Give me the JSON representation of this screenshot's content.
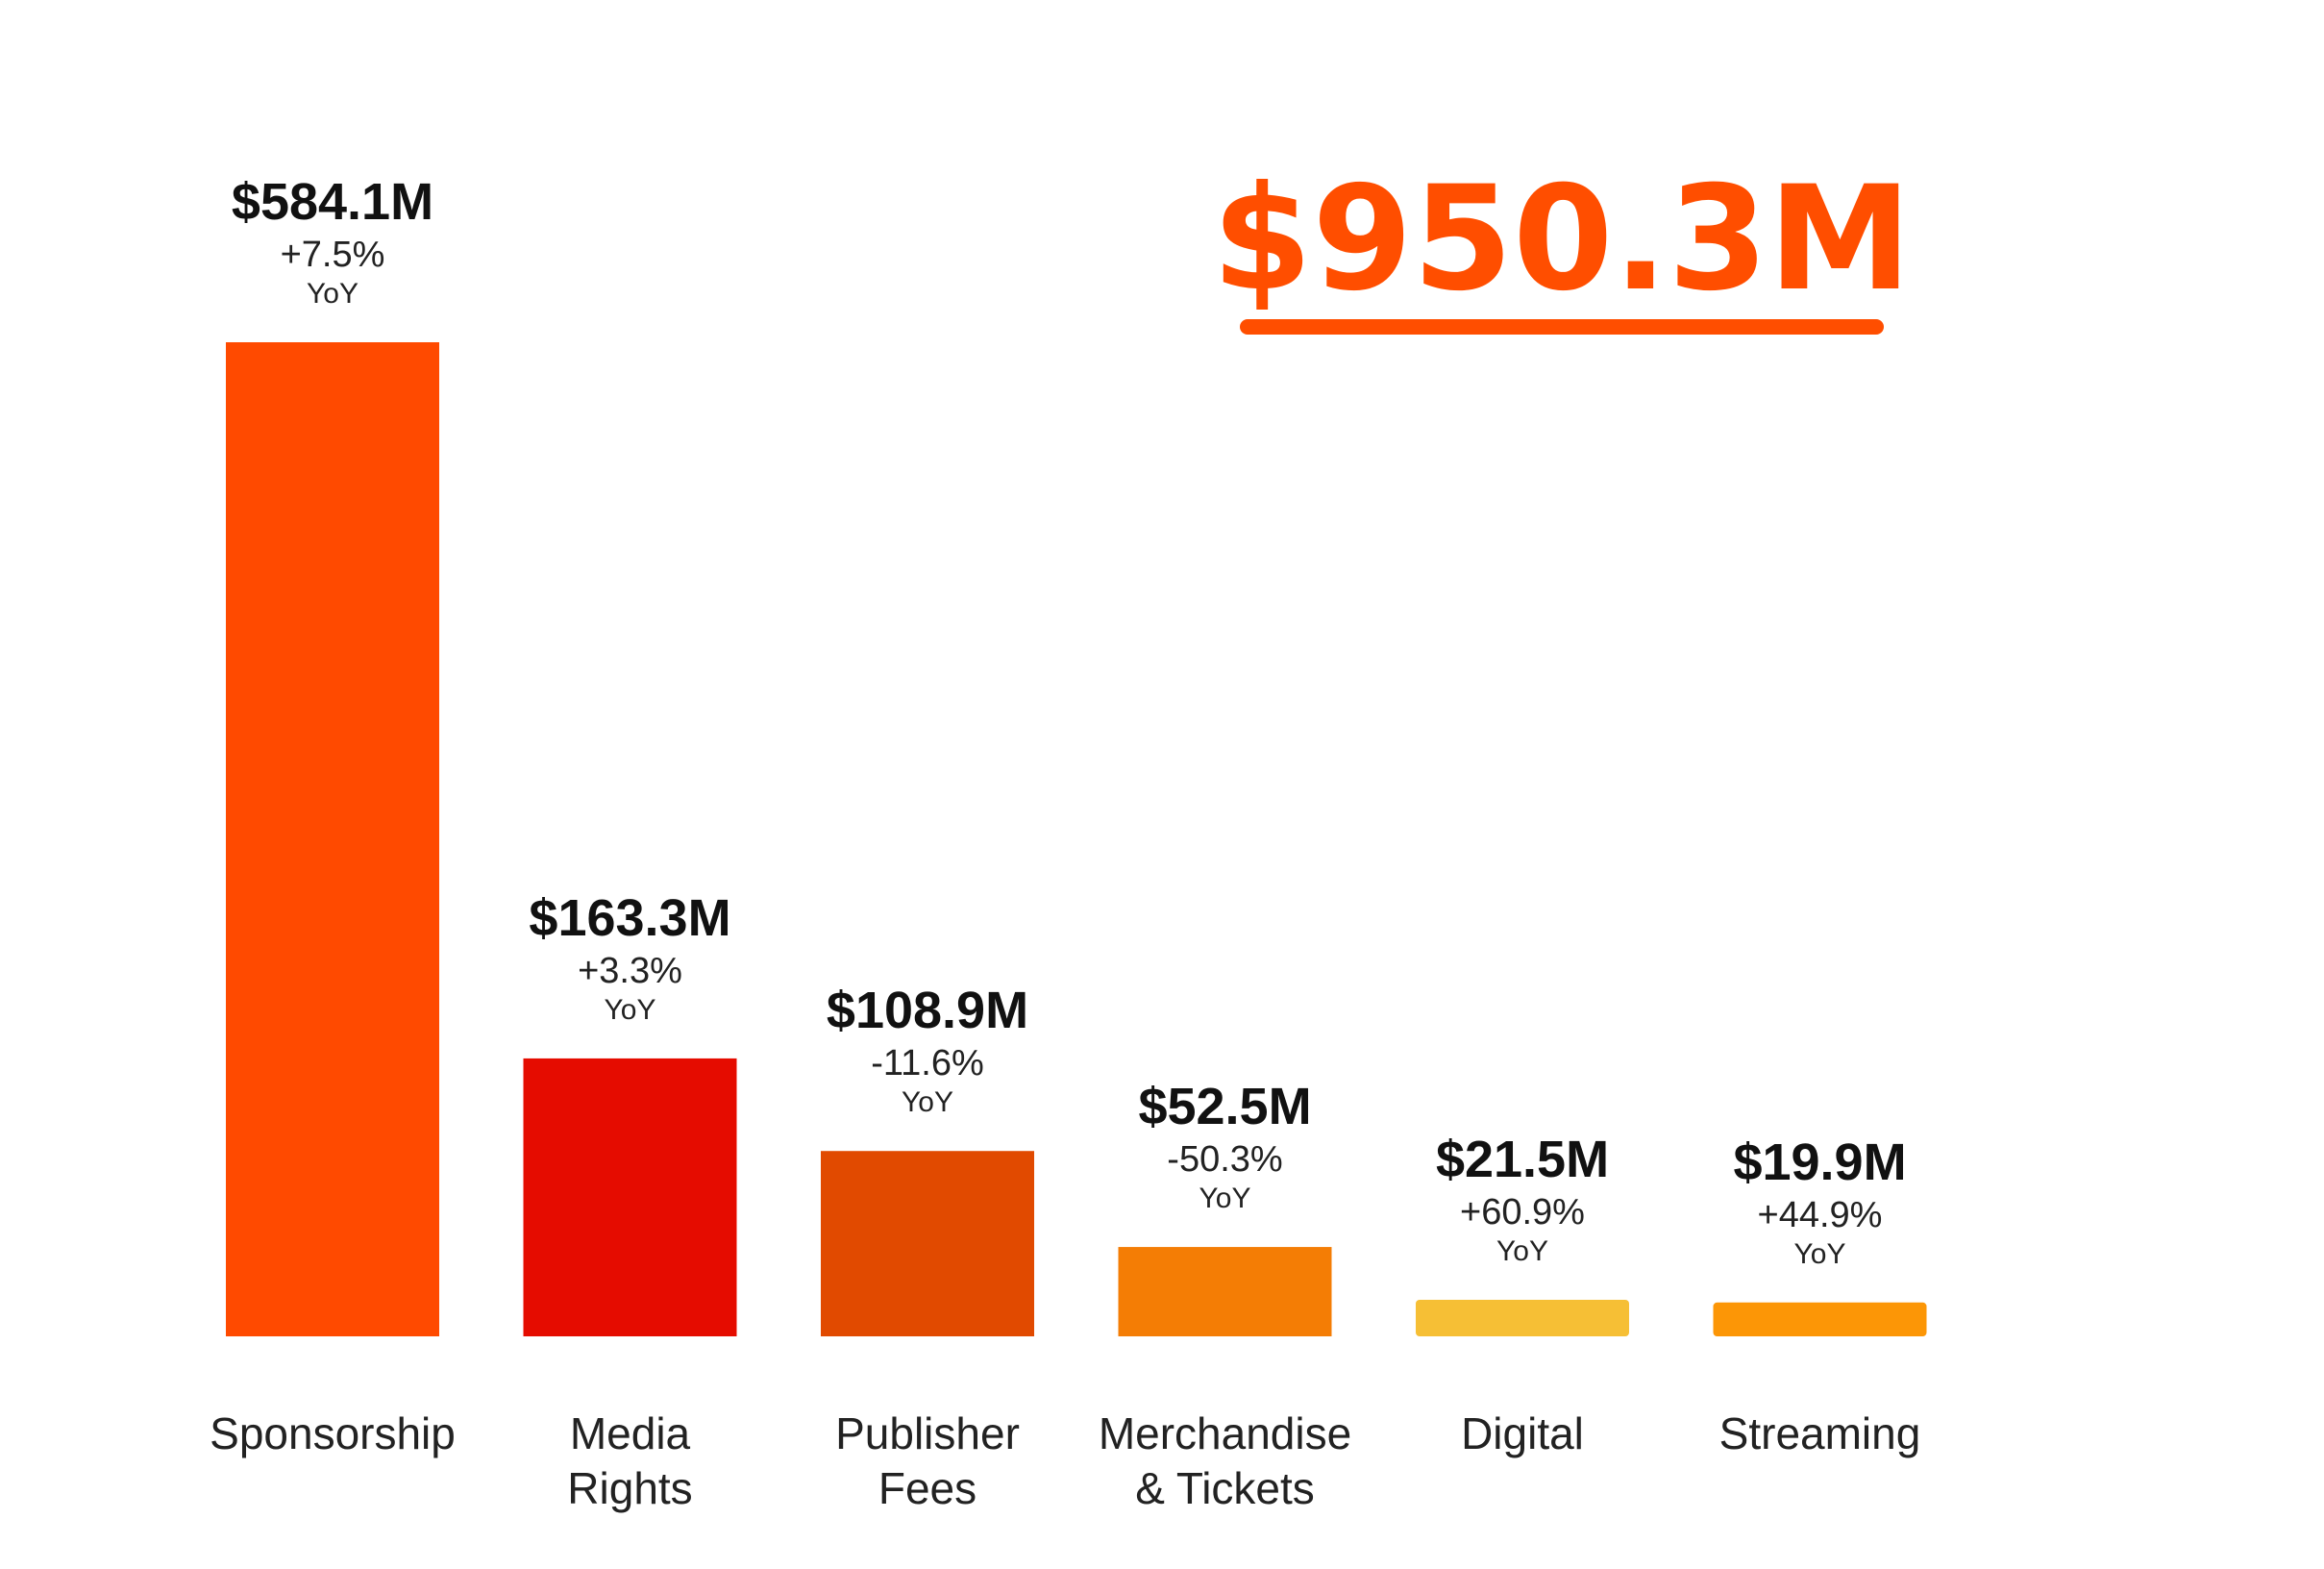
{
  "total": {
    "value_text": "$950.3M",
    "color": "#FF4E00"
  },
  "chart_data": {
    "type": "bar",
    "title": "",
    "xlabel": "",
    "ylabel": "",
    "unit": "$M",
    "ylim": [
      0,
      584.1
    ],
    "grid": false,
    "categories": [
      [
        "Sponsorship"
      ],
      [
        "Media",
        "Rights"
      ],
      [
        "Publisher",
        "Fees"
      ],
      [
        "Merchandise",
        "& Tickets"
      ],
      [
        "Digital"
      ],
      [
        "Streaming"
      ]
    ],
    "values": [
      584.1,
      163.3,
      108.9,
      52.5,
      21.5,
      19.9
    ],
    "value_labels": [
      "$584.1M",
      "$163.3M",
      "$108.9M",
      "$52.5M",
      "$21.5M",
      "$19.9M"
    ],
    "change_labels": [
      "+7.5%",
      "+3.3%",
      "-11.6%",
      "-50.3%",
      "+60.9%",
      "+44.9%"
    ],
    "change_suffix": "YoY",
    "colors": [
      "#FF4A00",
      "#E50C00",
      "#E14A00",
      "#F47D05",
      "#F6BF35",
      "#FC9606"
    ]
  }
}
